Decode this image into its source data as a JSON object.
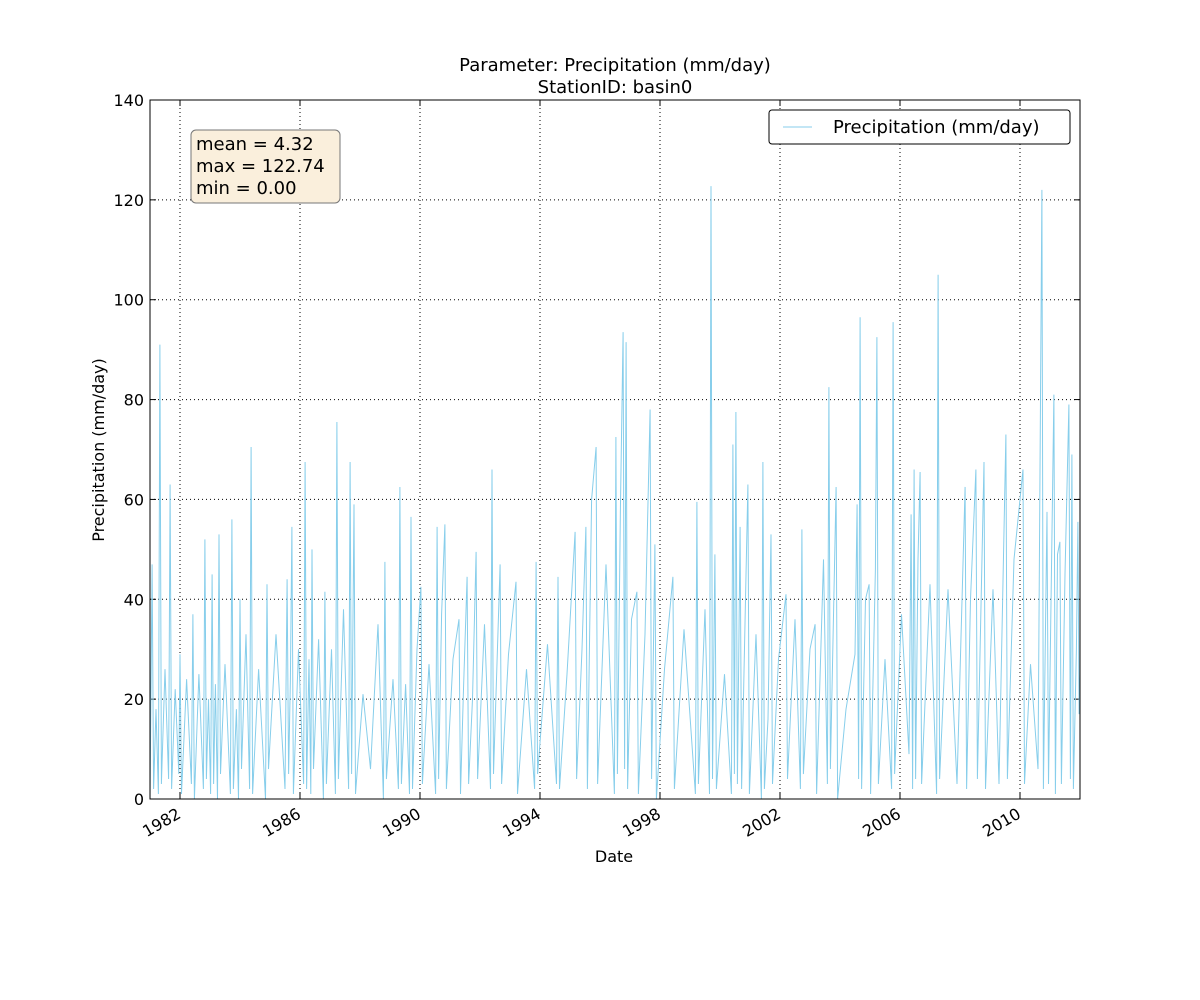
{
  "chart_data": {
    "type": "line",
    "title": "Parameter: Precipitation (mm/day)",
    "subtitle": "StationID: basin0",
    "x_label": "Date",
    "y_label": "Precipitation (mm/day)",
    "annotations": [
      "mean = 4.32",
      "max = 122.74",
      "min = 0.00"
    ],
    "legend_position": "upper right",
    "grid": true,
    "xlim": [
      1981,
      2012
    ],
    "xticks": [
      1982,
      1986,
      1990,
      1994,
      1998,
      2002,
      2006,
      2010
    ],
    "ylim": [
      0,
      140
    ],
    "yticks": [
      0,
      20,
      40,
      60,
      80,
      100,
      120,
      140
    ],
    "x": [
      1981.0,
      1981.07,
      1981.12,
      1981.2,
      1981.28,
      1981.33,
      1981.38,
      1981.5,
      1981.62,
      1981.67,
      1981.72,
      1981.84,
      1981.96,
      1982.0,
      1982.05,
      1982.22,
      1982.38,
      1982.43,
      1982.48,
      1982.63,
      1982.78,
      1982.83,
      1982.88,
      1982.95,
      1983.02,
      1983.07,
      1983.12,
      1983.18,
      1983.25,
      1983.3,
      1983.35,
      1983.5,
      1983.68,
      1983.73,
      1983.78,
      1983.88,
      1983.95,
      1984.0,
      1984.05,
      1984.2,
      1984.32,
      1984.37,
      1984.42,
      1984.62,
      1984.85,
      1984.9,
      1984.95,
      1985.2,
      1985.5,
      1985.57,
      1985.62,
      1985.68,
      1985.73,
      1985.78,
      1985.95,
      1986.12,
      1986.17,
      1986.22,
      1986.3,
      1986.36,
      1986.4,
      1986.45,
      1986.62,
      1986.78,
      1986.83,
      1986.88,
      1987.05,
      1987.18,
      1987.23,
      1987.28,
      1987.45,
      1987.62,
      1987.67,
      1987.72,
      1987.8,
      1987.85,
      1988.1,
      1988.35,
      1988.6,
      1988.78,
      1988.83,
      1988.88,
      1989.1,
      1989.28,
      1989.33,
      1989.38,
      1989.52,
      1989.65,
      1989.7,
      1989.75,
      1989.9,
      1990.03,
      1990.08,
      1990.3,
      1990.52,
      1990.57,
      1990.62,
      1990.72,
      1990.83,
      1990.88,
      1991.1,
      1991.3,
      1991.35,
      1991.45,
      1991.57,
      1991.62,
      1991.75,
      1991.87,
      1991.92,
      1992.15,
      1992.35,
      1992.4,
      1992.45,
      1992.55,
      1992.67,
      1992.72,
      1992.95,
      1993.2,
      1993.25,
      1993.55,
      1993.82,
      1993.87,
      1993.92,
      1994.25,
      1994.55,
      1994.6,
      1994.65,
      1994.9,
      1995.17,
      1995.22,
      1995.4,
      1995.53,
      1995.58,
      1995.72,
      1995.87,
      1995.92,
      1996.2,
      1996.48,
      1996.53,
      1996.58,
      1996.68,
      1996.77,
      1996.82,
      1996.87,
      1996.92,
      1997.05,
      1997.23,
      1997.28,
      1997.5,
      1997.67,
      1997.72,
      1997.83,
      1997.88,
      1998.15,
      1998.43,
      1998.48,
      1998.8,
      1999.18,
      1999.23,
      1999.28,
      1999.5,
      1999.65,
      1999.7,
      1999.75,
      1999.83,
      1999.88,
      2000.15,
      2000.38,
      2000.43,
      2000.48,
      2000.53,
      2000.58,
      2000.67,
      2000.72,
      2000.85,
      2000.93,
      2000.98,
      2001.2,
      2001.38,
      2001.43,
      2001.48,
      2001.6,
      2001.7,
      2001.75,
      2001.95,
      2002.2,
      2002.25,
      2002.5,
      2002.68,
      2002.73,
      2002.78,
      2003.0,
      2003.17,
      2003.22,
      2003.45,
      2003.58,
      2003.63,
      2003.68,
      2003.87,
      2003.92,
      2004.2,
      2004.5,
      2004.57,
      2004.62,
      2004.67,
      2004.72,
      2004.85,
      2004.97,
      2005.02,
      2005.18,
      2005.23,
      2005.28,
      2005.5,
      2005.72,
      2005.77,
      2005.82,
      2006.05,
      2006.3,
      2006.37,
      2006.42,
      2006.47,
      2006.52,
      2006.6,
      2006.67,
      2006.72,
      2007.0,
      2007.22,
      2007.27,
      2007.32,
      2007.6,
      2007.9,
      2008.17,
      2008.22,
      2008.35,
      2008.53,
      2008.58,
      2008.8,
      2008.85,
      2009.1,
      2009.3,
      2009.53,
      2009.58,
      2009.8,
      2010.1,
      2010.15,
      2010.35,
      2010.6,
      2010.73,
      2010.78,
      2010.9,
      2010.95,
      2011.13,
      2011.18,
      2011.25,
      2011.33,
      2011.38,
      2011.5,
      2011.63,
      2011.68,
      2011.73,
      2011.78,
      2011.88,
      2011.93,
      2011.97,
      2012.0
    ],
    "series": [
      {
        "name": "Precipitation (mm/day)",
        "color": "#87ceeb",
        "values": [
          0,
          47,
          2,
          18,
          1,
          91,
          3,
          26,
          4,
          63,
          2,
          22,
          5,
          29,
          1,
          24,
          3,
          37,
          0,
          25,
          2,
          52,
          4,
          20,
          1,
          45,
          3,
          23,
          0,
          53,
          5,
          27,
          1,
          56,
          2,
          18,
          0,
          40,
          6,
          33,
          2,
          70.5,
          1,
          26,
          0,
          43,
          6,
          33,
          2,
          44,
          5,
          24,
          54.5,
          1,
          30,
          3,
          67.5,
          2,
          28,
          1,
          50,
          6,
          32,
          0,
          41.5,
          3,
          30,
          1,
          75.5,
          4,
          38,
          2,
          67.5,
          5,
          59,
          1,
          21,
          6,
          35,
          0,
          47.5,
          4,
          24,
          2,
          62.5,
          3,
          23,
          1,
          56.5,
          2,
          30,
          42.5,
          3,
          27,
          1,
          54.5,
          4,
          37,
          55,
          2,
          28,
          36,
          1,
          22,
          44.5,
          3,
          20,
          49.5,
          4,
          35,
          2,
          66,
          5,
          24,
          47,
          3,
          29,
          43.5,
          1,
          26,
          2,
          47.5,
          5,
          31,
          3,
          44.5,
          2,
          25,
          53.5,
          4,
          30,
          54.5,
          2,
          60,
          70.5,
          3,
          47,
          1,
          72.5,
          5,
          58,
          93.5,
          6,
          91.5,
          2,
          36,
          41.5,
          1,
          33,
          78,
          4,
          51,
          0,
          26,
          44.5,
          2,
          34,
          1,
          59.5,
          3,
          38,
          1,
          122.74,
          4,
          49,
          2,
          25,
          1,
          71,
          5,
          77.5,
          3,
          54.5,
          2,
          40,
          63,
          1,
          33,
          0,
          67.5,
          2,
          16,
          53,
          3,
          28,
          41,
          4,
          36,
          2,
          54,
          5,
          30,
          35,
          1,
          48,
          3,
          82.5,
          6,
          62.5,
          0,
          18,
          29,
          59,
          4,
          96.5,
          2,
          40,
          43,
          1,
          46,
          92.5,
          3,
          28,
          2,
          95.5,
          5,
          37,
          9,
          57,
          2,
          66,
          4,
          48,
          65.5,
          3,
          43,
          1,
          105,
          4,
          42,
          3,
          62.5,
          2,
          40,
          66,
          4,
          67.5,
          2,
          42,
          3,
          73,
          4,
          48,
          66,
          3,
          27,
          6,
          122,
          2,
          57.5,
          3,
          81,
          1,
          49,
          51.5,
          3,
          45,
          79,
          4,
          69,
          2,
          30,
          55.5,
          17,
          25
        ]
      }
    ]
  }
}
